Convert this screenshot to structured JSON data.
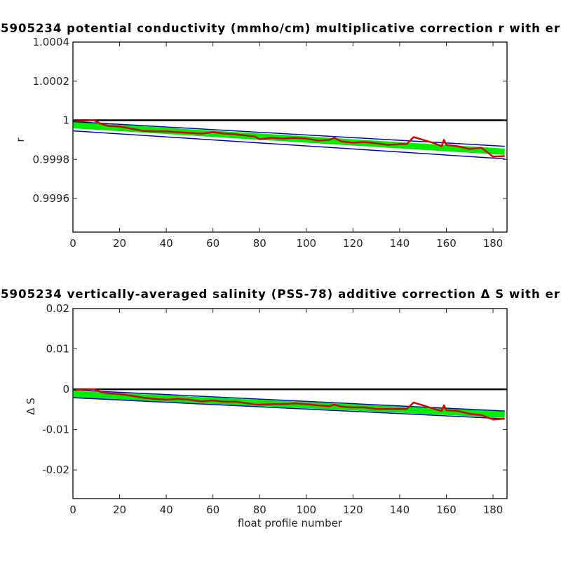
{
  "chart_data": [
    {
      "type": "line",
      "title": "5905234 potential conductivity (mmho/cm) multiplicative correction r with er",
      "ylabel": "r",
      "xlim": [
        0,
        186
      ],
      "ylim": [
        0.999428,
        1.0004
      ],
      "xticks": [
        0,
        20,
        40,
        60,
        80,
        100,
        120,
        140,
        160,
        180
      ],
      "yticks": [
        0.9996,
        0.9998,
        1,
        1.0002,
        1.0004
      ],
      "series": [
        {
          "color": "#00ee00",
          "linewidth": 9,
          "x": [
            0,
            185
          ],
          "values": [
            0.999975,
            0.999839
          ]
        },
        {
          "color": "#0000cc",
          "linewidth": 1.5,
          "x": [
            0,
            185
          ],
          "values": [
            0.999993,
            0.999867
          ]
        },
        {
          "color": "#0000cc",
          "linewidth": 1.5,
          "x": [
            0,
            185
          ],
          "values": [
            0.999946,
            0.999803
          ]
        },
        {
          "color": "#000000",
          "linewidth": 2.5,
          "x": [
            0,
            186
          ],
          "values": [
            1,
            1
          ]
        },
        {
          "color": "#dd0000",
          "linewidth": 2.5,
          "x": [
            1,
            5,
            9,
            12,
            15,
            20,
            25,
            30,
            35,
            40,
            45,
            50,
            55,
            60,
            65,
            70,
            75,
            78,
            80,
            85,
            90,
            95,
            100,
            105,
            110,
            112,
            115,
            120,
            125,
            130,
            135,
            140,
            143,
            146,
            150,
            155,
            158,
            159,
            160,
            165,
            170,
            175,
            180,
            185
          ],
          "values": [
            0.999996,
            0.999996,
            1,
            0.999982,
            0.999971,
            0.999968,
            0.999957,
            0.999946,
            0.999943,
            0.999943,
            0.999939,
            0.999935,
            0.999932,
            0.999939,
            0.999932,
            0.999928,
            0.999921,
            0.999917,
            0.999903,
            0.99991,
            0.999907,
            0.99991,
            0.999907,
            0.999896,
            0.9999,
            0.99991,
            0.999892,
            0.999885,
            0.999889,
            0.999882,
            0.999874,
            0.999878,
            0.999878,
            0.999914,
            0.9999,
            0.999882,
            0.999867,
            0.9999,
            0.999874,
            0.999867,
            0.999853,
            0.99986,
            0.999814,
            0.999817
          ]
        }
      ]
    },
    {
      "type": "line",
      "title": "5905234 vertically-averaged salinity (PSS-78) additive correction Δ S with er",
      "ylabel": "Δ S",
      "xlabel": "float profile number",
      "xlim": [
        0,
        186
      ],
      "ylim": [
        -0.0271,
        0.02
      ],
      "xticks": [
        0,
        20,
        40,
        60,
        80,
        100,
        120,
        140,
        160,
        180
      ],
      "yticks": [
        -0.02,
        -0.01,
        0,
        0.01,
        0.02
      ],
      "series": [
        {
          "color": "#00ee00",
          "linewidth": 9,
          "x": [
            0,
            185
          ],
          "values": [
            -0.0012,
            -0.0063
          ]
        },
        {
          "color": "#0000cc",
          "linewidth": 1.5,
          "x": [
            0,
            185
          ],
          "values": [
            -0.0002,
            -0.0054
          ]
        },
        {
          "color": "#0000cc",
          "linewidth": 1.5,
          "x": [
            0,
            185
          ],
          "values": [
            -0.0021,
            -0.0073
          ]
        },
        {
          "color": "#000000",
          "linewidth": 2.5,
          "x": [
            0,
            186
          ],
          "values": [
            0,
            0
          ]
        },
        {
          "color": "#dd0000",
          "linewidth": 2.5,
          "x": [
            1,
            5,
            9,
            12,
            15,
            20,
            25,
            30,
            35,
            40,
            45,
            50,
            55,
            60,
            65,
            70,
            75,
            78,
            80,
            85,
            90,
            95,
            100,
            105,
            110,
            112,
            115,
            120,
            125,
            130,
            135,
            140,
            143,
            146,
            150,
            155,
            158,
            159,
            160,
            165,
            170,
            175,
            180,
            185
          ],
          "values": [
            -0.0002,
            -0.0002,
            0,
            -0.0007,
            -0.001,
            -0.0012,
            -0.0016,
            -0.0021,
            -0.0024,
            -0.0026,
            -0.0024,
            -0.0026,
            -0.003,
            -0.0028,
            -0.0031,
            -0.0031,
            -0.0035,
            -0.0038,
            -0.0038,
            -0.0037,
            -0.0037,
            -0.0035,
            -0.0037,
            -0.004,
            -0.0042,
            -0.0038,
            -0.0043,
            -0.0045,
            -0.0045,
            -0.0049,
            -0.0049,
            -0.0049,
            -0.0049,
            -0.0033,
            -0.004,
            -0.0049,
            -0.0054,
            -0.004,
            -0.0052,
            -0.0054,
            -0.0061,
            -0.0064,
            -0.0075,
            -0.0073
          ]
        }
      ]
    }
  ]
}
